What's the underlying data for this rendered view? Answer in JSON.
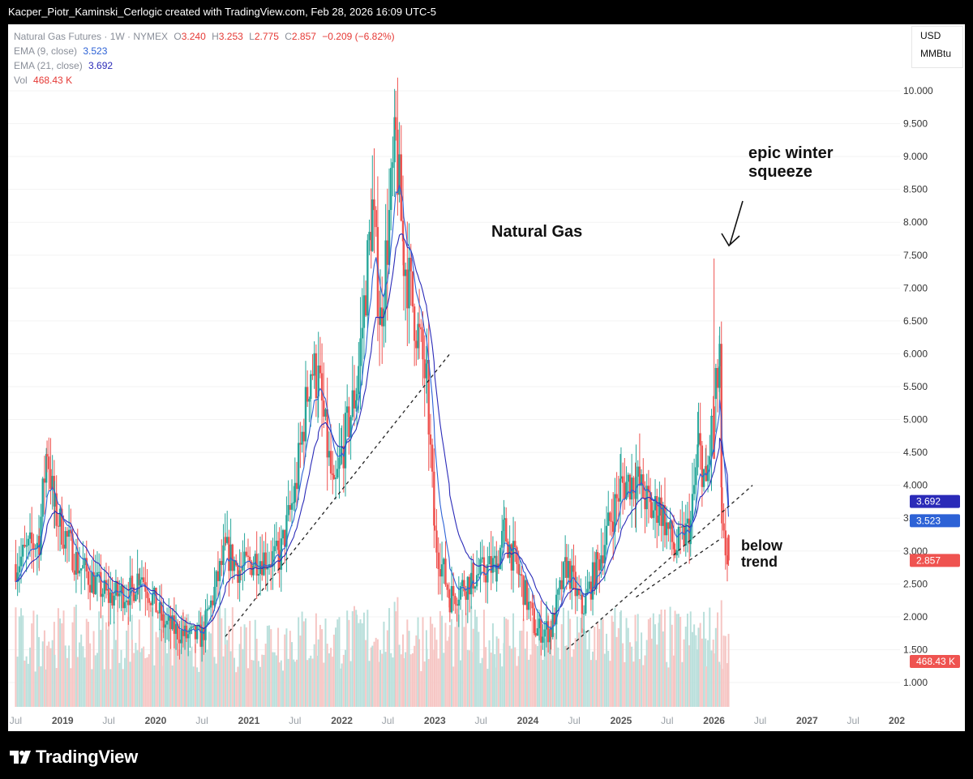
{
  "header": {
    "caption": "Kacper_Piotr_Kaminski_Cerlogic created with TradingView.com, Feb 28, 2026 16:09 UTC-5"
  },
  "legend": {
    "symbol": "Natural Gas Futures · 1W · NYMEX",
    "open_label": "O",
    "open": "3.240",
    "high_label": "H",
    "high": "3.253",
    "low_label": "L",
    "low": "2.775",
    "close_label": "C",
    "close": "2.857",
    "change": "−0.209 (−6.82%)",
    "ema9_label": "EMA (9, close)",
    "ema9_value": "3.523",
    "ema21_label": "EMA (21, close)",
    "ema21_value": "3.692",
    "vol_label": "Vol",
    "vol_value": "468.43 K"
  },
  "units": {
    "currency": "USD",
    "unit": "MMBtu"
  },
  "colors": {
    "up": "#26a69a",
    "down": "#ef5350",
    "ema9": "#2d62d6",
    "ema21": "#2a2ab8",
    "trendline": "#222222"
  },
  "price_badges": {
    "ema21": "3.692",
    "ema9": "3.523",
    "close": "2.857",
    "volume": "468.43 K"
  },
  "annotations": {
    "title": "Natural Gas",
    "squeeze_line1": "epic winter",
    "squeeze_line2": "squeeze",
    "trend_line1": "below",
    "trend_line2": "trend"
  },
  "footer": {
    "brand": "TradingView"
  },
  "chart_data": {
    "type": "candlestick",
    "title": "Natural Gas",
    "timeframe": "1W",
    "y_ticks": [
      "1.000",
      "1.500",
      "2.000",
      "2.500",
      "3.000",
      "3.500",
      "4.000",
      "4.500",
      "5.000",
      "5.500",
      "6.000",
      "6.500",
      "7.000",
      "7.500",
      "8.000",
      "8.500",
      "9.000",
      "9.500",
      "10.000"
    ],
    "x_ticks": [
      "Jul",
      "2019",
      "Jul",
      "2020",
      "Jul",
      "2021",
      "Jul",
      "2022",
      "Jul",
      "2023",
      "Jul",
      "2024",
      "Jul",
      "2025",
      "Jul",
      "2026",
      "Jul",
      "2027",
      "Jul",
      "202"
    ],
    "ylim": [
      0.6,
      10.5
    ],
    "close_path": [
      {
        "date": "2018-07",
        "value": 2.8
      },
      {
        "date": "2018-10",
        "value": 3.2
      },
      {
        "date": "2018-11",
        "value": 4.6
      },
      {
        "date": "2018-12",
        "value": 3.6
      },
      {
        "date": "2019-03",
        "value": 2.8
      },
      {
        "date": "2019-07",
        "value": 2.3
      },
      {
        "date": "2019-10",
        "value": 2.4
      },
      {
        "date": "2019-11",
        "value": 2.7
      },
      {
        "date": "2020-02",
        "value": 1.9
      },
      {
        "date": "2020-05",
        "value": 1.7
      },
      {
        "date": "2020-07",
        "value": 1.7
      },
      {
        "date": "2020-10",
        "value": 3.0
      },
      {
        "date": "2020-12",
        "value": 2.7
      },
      {
        "date": "2021-02",
        "value": 2.9
      },
      {
        "date": "2021-05",
        "value": 2.9
      },
      {
        "date": "2021-07",
        "value": 3.9
      },
      {
        "date": "2021-09",
        "value": 5.8
      },
      {
        "date": "2021-10",
        "value": 5.6
      },
      {
        "date": "2021-12",
        "value": 3.8
      },
      {
        "date": "2022-01",
        "value": 4.5
      },
      {
        "date": "2022-03",
        "value": 5.5
      },
      {
        "date": "2022-05",
        "value": 8.2
      },
      {
        "date": "2022-06",
        "value": 6.5
      },
      {
        "date": "2022-08",
        "value": 9.2
      },
      {
        "date": "2022-09",
        "value": 7.5
      },
      {
        "date": "2022-11",
        "value": 6.2
      },
      {
        "date": "2022-12",
        "value": 5.5
      },
      {
        "date": "2023-01",
        "value": 3.2
      },
      {
        "date": "2023-03",
        "value": 2.3
      },
      {
        "date": "2023-06",
        "value": 2.6
      },
      {
        "date": "2023-09",
        "value": 2.8
      },
      {
        "date": "2023-10",
        "value": 3.3
      },
      {
        "date": "2023-12",
        "value": 2.6
      },
      {
        "date": "2024-02",
        "value": 1.8
      },
      {
        "date": "2024-04",
        "value": 1.8
      },
      {
        "date": "2024-06",
        "value": 2.8
      },
      {
        "date": "2024-08",
        "value": 2.1
      },
      {
        "date": "2024-10",
        "value": 2.8
      },
      {
        "date": "2024-12",
        "value": 3.6
      },
      {
        "date": "2025-01",
        "value": 4.0
      },
      {
        "date": "2025-03",
        "value": 4.1
      },
      {
        "date": "2025-05",
        "value": 3.6
      },
      {
        "date": "2025-06",
        "value": 3.7
      },
      {
        "date": "2025-08",
        "value": 3.0
      },
      {
        "date": "2025-10",
        "value": 3.4
      },
      {
        "date": "2025-11",
        "value": 4.6
      },
      {
        "date": "2025-12",
        "value": 4.0
      },
      {
        "date": "2026-01",
        "value": 5.2
      },
      {
        "date": "2026-01-23",
        "value": 5.8
      },
      {
        "date": "2026-02",
        "value": 3.2
      },
      {
        "date": "2026-02-27",
        "value": 2.857
      }
    ],
    "spike": {
      "date": "2026-01",
      "high": 7.45
    },
    "peak": {
      "date": "2022-08",
      "high": 10.0
    },
    "last_bar": {
      "open": 3.24,
      "high": 3.253,
      "low": 2.775,
      "close": 2.857
    },
    "ema9_last": 3.523,
    "ema21_last": 3.692,
    "volume_last": "468.43 K",
    "trendlines": [
      {
        "from": {
          "date": "2020-10",
          "value": 1.7
        },
        "to": {
          "date": "2023-03",
          "value": 6.0
        }
      },
      {
        "from": {
          "date": "2024-06",
          "value": 1.5
        },
        "to": {
          "date": "2026-06",
          "value": 4.0
        }
      },
      {
        "from": {
          "date": "2025-03",
          "value": 2.3
        },
        "to": {
          "date": "2026-02",
          "value": 3.2
        }
      }
    ]
  }
}
